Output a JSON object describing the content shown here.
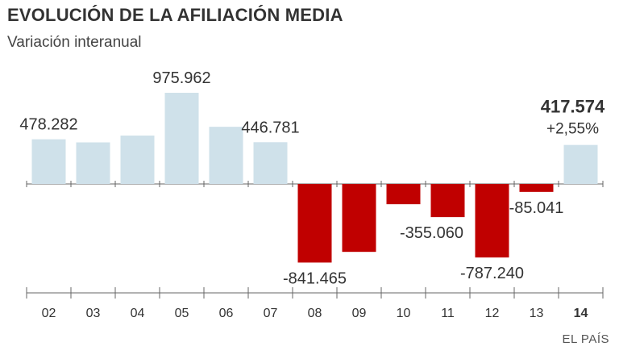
{
  "title": "EVOLUCIÓN DE LA AFILIACIÓN MEDIA",
  "subtitle": "Variación interanual",
  "credit": "EL PAÍS",
  "chart_data": {
    "type": "bar",
    "title": "EVOLUCIÓN DE LA AFILIACIÓN MEDIA",
    "subtitle": "Variación interanual",
    "categories": [
      "02",
      "03",
      "04",
      "05",
      "06",
      "07",
      "08",
      "09",
      "10",
      "11",
      "12",
      "13",
      "14"
    ],
    "values": [
      478282,
      445000,
      518000,
      975962,
      612000,
      446781,
      -841465,
      -727000,
      -217000,
      -355060,
      -787240,
      -85041,
      417574
    ],
    "data_labels": {
      "0": "478.282",
      "3": "975.962",
      "5": "446.781",
      "6": "-841.465",
      "9": "-355.060",
      "10": "-787.240",
      "11": "-85.041",
      "12": "417.574"
    },
    "highlight": {
      "index": 12,
      "label": "417.574",
      "note": "+2,55%"
    },
    "colors": {
      "positive": "#cfe1ea",
      "negative": "#c00000"
    },
    "grid": false,
    "legend": "none"
  }
}
